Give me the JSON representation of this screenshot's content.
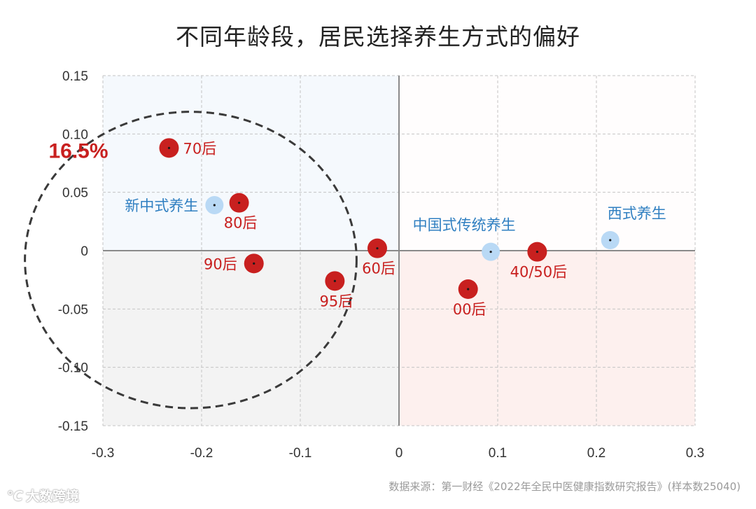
{
  "title": "不同年龄段，居民选择养生方式的偏好",
  "source": "数据来源：第一财经《2022年全民中医健康指数研究报告》(样本数25040)",
  "watermark": "大数跨境",
  "chart_data": {
    "type": "scatter",
    "title": "不同年龄段，居民选择养生方式的偏好",
    "xlim": [
      -0.3,
      0.3
    ],
    "ylim": [
      -0.15,
      0.15
    ],
    "x_ticks": [
      -0.3,
      -0.2,
      -0.1,
      0,
      0.1,
      0.2,
      0.3
    ],
    "x_tick_labels": [
      "-0.3",
      "-0.2",
      "-0.1",
      "0",
      "0.1",
      "0.2",
      "0.3"
    ],
    "y_ticks": [
      0.15,
      0.1,
      0.05,
      0,
      -0.05,
      -0.1,
      -0.15
    ],
    "y_tick_labels": [
      "0.15",
      "0.10",
      "0.05",
      "0",
      "-0.05",
      "-0.10",
      "-0.15"
    ],
    "grid": true,
    "series": [
      {
        "color": "#c8201f",
        "points": [
          {
            "label": "70后",
            "x": -0.233,
            "y": 0.088,
            "label_pos": "right"
          },
          {
            "label": "80后",
            "x": -0.162,
            "y": 0.041,
            "label_pos": "below"
          },
          {
            "label": "90后",
            "x": -0.147,
            "y": -0.011,
            "label_pos": "left"
          },
          {
            "label": "95后",
            "x": -0.065,
            "y": -0.026,
            "label_pos": "below"
          },
          {
            "label": "60后",
            "x": -0.022,
            "y": 0.002,
            "label_pos": "below"
          },
          {
            "label": "00后",
            "x": 0.07,
            "y": -0.033,
            "label_pos": "below"
          },
          {
            "label": "40/50后",
            "x": 0.14,
            "y": -0.001,
            "label_pos": "below"
          }
        ]
      },
      {
        "color": "#b9d9f5",
        "points": [
          {
            "label": "新中式养生",
            "x": -0.187,
            "y": 0.039,
            "label_pos": "left"
          },
          {
            "label": "中国式传统养生",
            "x": 0.093,
            "y": -0.001,
            "label_pos": "above-left"
          },
          {
            "label": "西式养生",
            "x": 0.214,
            "y": 0.009,
            "label_pos": "above"
          }
        ]
      }
    ],
    "annotations": [
      {
        "type": "ellipse",
        "text": "16.5%",
        "center": [
          -0.211,
          -0.008
        ],
        "radius_x": 0.168,
        "radius_y": 0.127,
        "color": "#c8201f"
      }
    ],
    "quadrant_colors": {
      "top_left": "#f5f9fd",
      "bottom_left": "#f3f3f3",
      "top_right": "#fffdfd",
      "bottom_right": "#fdf0ee"
    }
  }
}
